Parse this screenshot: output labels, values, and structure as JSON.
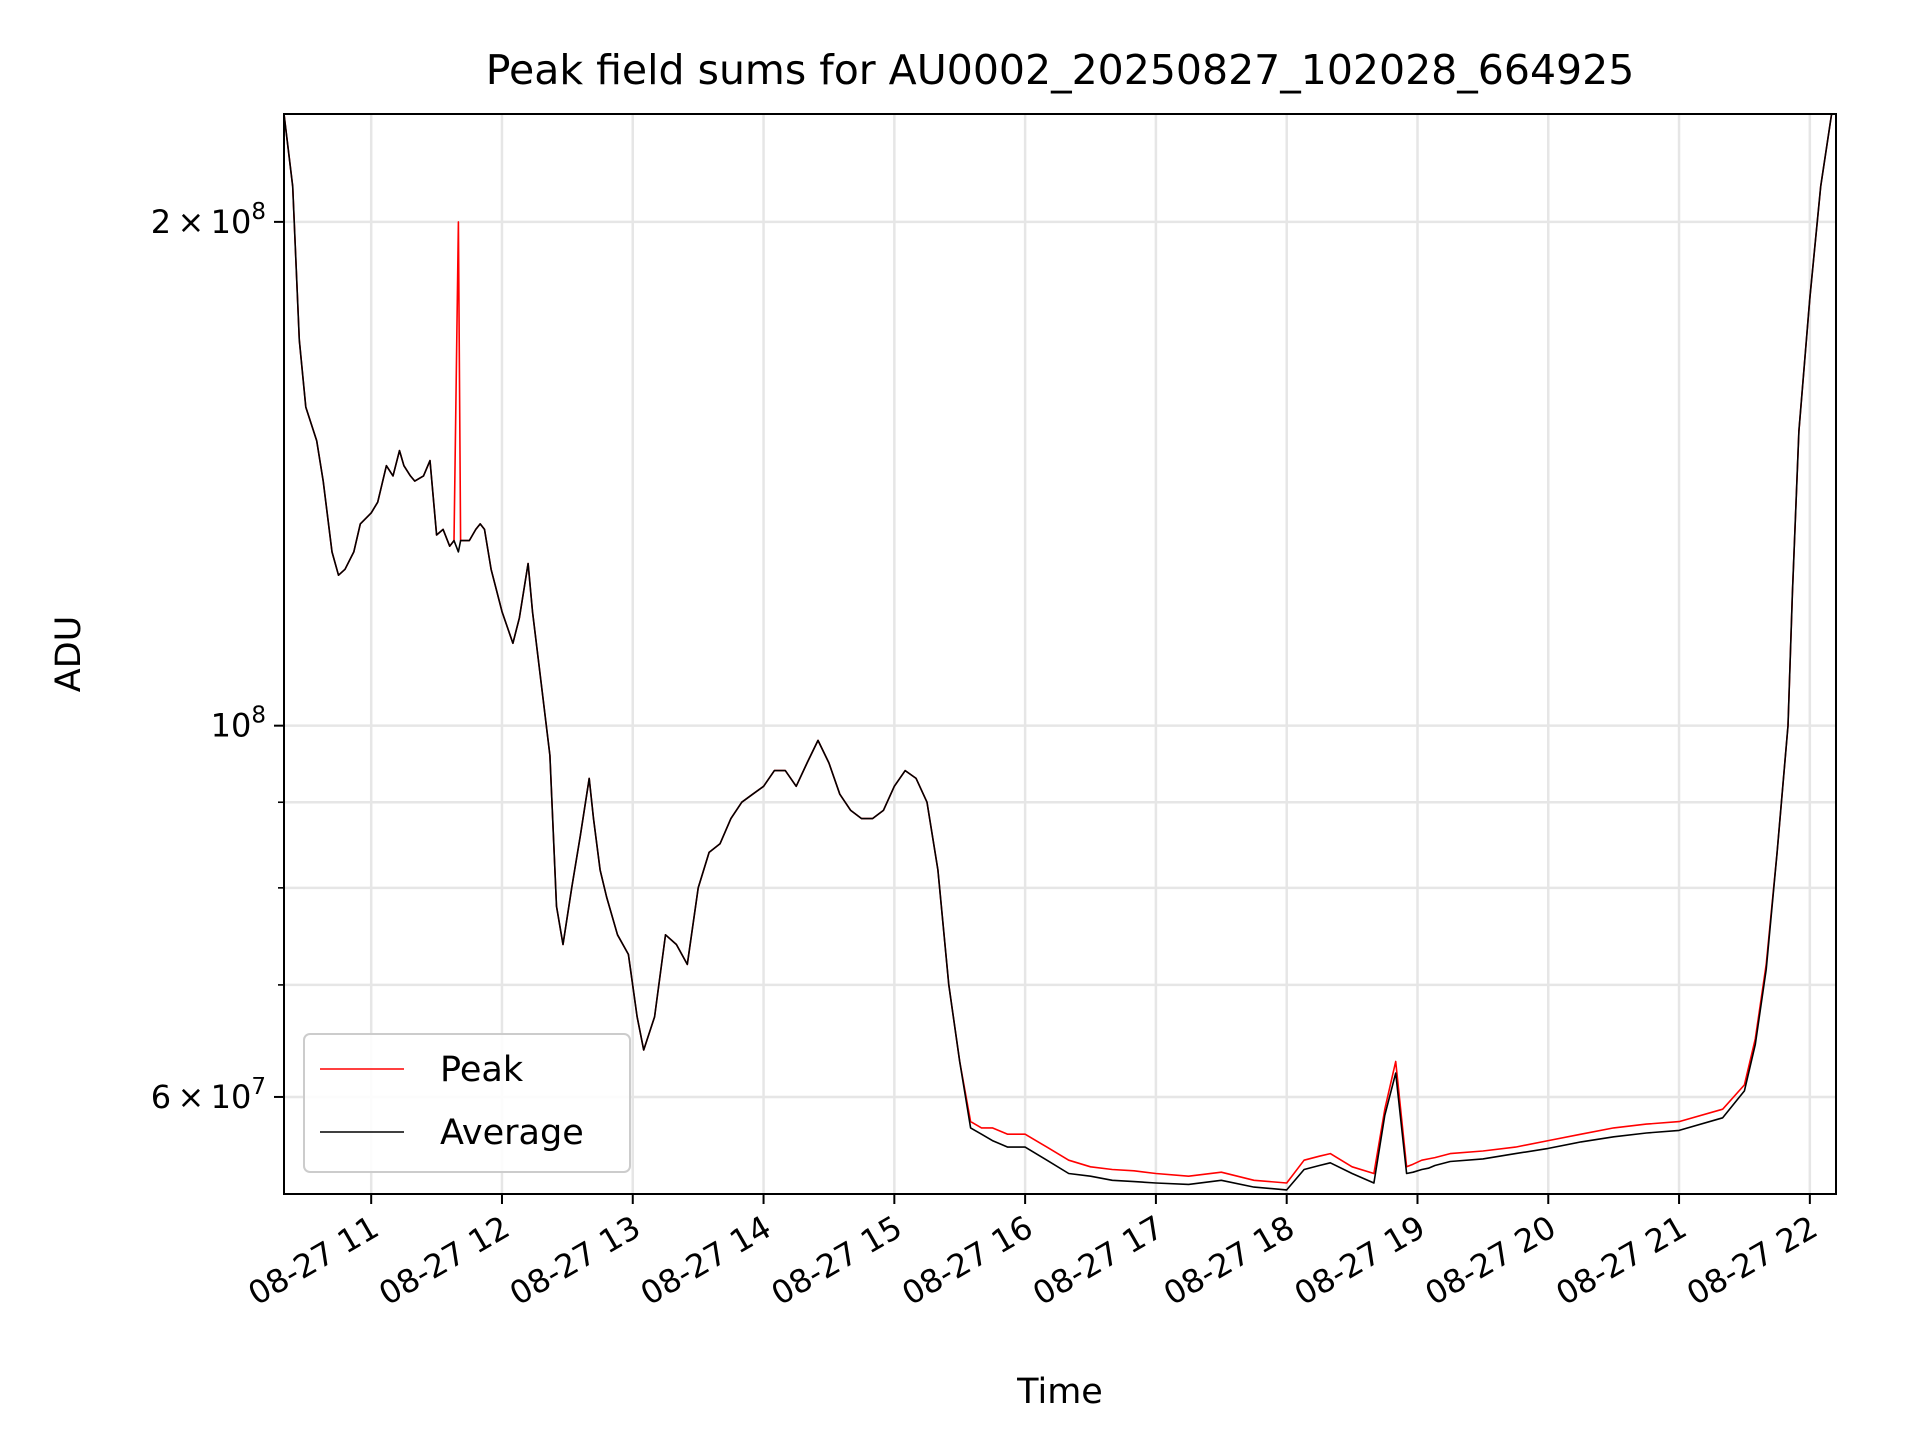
{
  "chart_data": {
    "type": "line",
    "title": "Peak field sums for AU0002_20250827_102028_664925",
    "xlabel": "Time",
    "ylabel": "ADU",
    "yscale": "log",
    "xlim": [
      "08-27 10:20",
      "08-27 22:12"
    ],
    "ylim": [
      52500000,
      232000000
    ],
    "grid": true,
    "legend_position": "lower-left",
    "x_ticks": [
      "08-27 11",
      "08-27 12",
      "08-27 13",
      "08-27 14",
      "08-27 15",
      "08-27 16",
      "08-27 17",
      "08-27 18",
      "08-27 19",
      "08-27 20",
      "08-27 21",
      "08-27 22"
    ],
    "y_ticks": [
      {
        "value": 200000000,
        "mant": "2",
        "exp": "8"
      },
      {
        "value": 100000000,
        "mant": "",
        "exp": "8"
      },
      {
        "value": 60000000,
        "mant": "6",
        "exp": "7"
      }
    ],
    "y_minor_ticks": [
      90000000,
      80000000,
      70000000
    ],
    "x": [
      "10:20",
      "10:24",
      "10:27",
      "10:30",
      "10:35",
      "10:38",
      "10:42",
      "10:45",
      "10:48",
      "10:52",
      "10:55",
      "11:00",
      "11:03",
      "11:07",
      "11:10",
      "11:13",
      "11:15",
      "11:18",
      "11:20",
      "11:24",
      "11:27",
      "11:30",
      "11:33",
      "11:36",
      "11:38",
      "11:40",
      "11:41",
      "11:45",
      "11:48",
      "11:50",
      "11:52",
      "11:55",
      "12:00",
      "12:05",
      "12:08",
      "12:12",
      "12:14",
      "12:18",
      "12:22",
      "12:25",
      "12:28",
      "12:32",
      "12:36",
      "12:40",
      "12:42",
      "12:45",
      "12:48",
      "12:53",
      "12:58",
      "13:02",
      "13:05",
      "13:10",
      "13:15",
      "13:20",
      "13:25",
      "13:30",
      "13:35",
      "13:40",
      "13:45",
      "13:50",
      "13:55",
      "14:00",
      "14:05",
      "14:10",
      "14:15",
      "14:20",
      "14:25",
      "14:30",
      "14:35",
      "14:40",
      "14:45",
      "14:50",
      "14:55",
      "15:00",
      "15:05",
      "15:10",
      "15:15",
      "15:20",
      "15:25",
      "15:30",
      "15:35",
      "15:40",
      "15:45",
      "15:52",
      "16:00",
      "16:10",
      "16:20",
      "16:30",
      "16:40",
      "16:50",
      "17:00",
      "17:15",
      "17:30",
      "17:45",
      "18:00",
      "18:08",
      "18:15",
      "18:20",
      "18:30",
      "18:40",
      "18:45",
      "18:50",
      "18:55",
      "18:58",
      "19:02",
      "19:05",
      "19:08",
      "19:15",
      "19:30",
      "19:45",
      "20:00",
      "20:15",
      "20:30",
      "20:45",
      "21:00",
      "21:20",
      "21:30",
      "21:35",
      "21:40",
      "21:45",
      "21:50",
      "21:52",
      "21:55",
      "22:00",
      "22:05",
      "22:10",
      "22:12"
    ],
    "series": [
      {
        "name": "Peak",
        "color": "#ff0000",
        "values": [
          232000000,
          210000000,
          170000000,
          155000000,
          148000000,
          140000000,
          127000000,
          123000000,
          124000000,
          127000000,
          132000000,
          134000000,
          136000000,
          143000000,
          141000000,
          146000000,
          143000000,
          141000000,
          140000000,
          141000000,
          144000000,
          130000000,
          131000000,
          128000000,
          129000000,
          200000000,
          129000000,
          129000000,
          131000000,
          132000000,
          131000000,
          124000000,
          117000000,
          112000000,
          116000000,
          125000000,
          117000000,
          106000000,
          96000000,
          78000000,
          74000000,
          80000000,
          86000000,
          93000000,
          88000000,
          82000000,
          79000000,
          75000000,
          73000000,
          67000000,
          64000000,
          67000000,
          75000000,
          74000000,
          72000000,
          80000000,
          84000000,
          85000000,
          88000000,
          90000000,
          91000000,
          92000000,
          94000000,
          94000000,
          92000000,
          95000000,
          98000000,
          95000000,
          91000000,
          89000000,
          88000000,
          88000000,
          89000000,
          92000000,
          94000000,
          93000000,
          90000000,
          82000000,
          70000000,
          63000000,
          58000000,
          57500000,
          57500000,
          57000000,
          57000000,
          56000000,
          55000000,
          54500000,
          54300000,
          54200000,
          54000000,
          53800000,
          54100000,
          53500000,
          53300000,
          55000000,
          55300000,
          55500000,
          54500000,
          54000000,
          59000000,
          63000000,
          54500000,
          54700000,
          55000000,
          55100000,
          55200000,
          55500000,
          55700000,
          56000000,
          56500000,
          57000000,
          57500000,
          57800000,
          58000000,
          59000000,
          61000000,
          65000000,
          72000000,
          84000000,
          100000000,
          120000000,
          150000000,
          180000000,
          210000000,
          232000000,
          232000000
        ]
      },
      {
        "name": "Average",
        "color": "#000000",
        "values": [
          232000000,
          210000000,
          170000000,
          155000000,
          148000000,
          140000000,
          127000000,
          123000000,
          124000000,
          127000000,
          132000000,
          134000000,
          136000000,
          143000000,
          141000000,
          146000000,
          143000000,
          141000000,
          140000000,
          141000000,
          144000000,
          130000000,
          131000000,
          128000000,
          129000000,
          127000000,
          129000000,
          129000000,
          131000000,
          132000000,
          131000000,
          124000000,
          117000000,
          112000000,
          116000000,
          125000000,
          117000000,
          106000000,
          96000000,
          78000000,
          74000000,
          80000000,
          86000000,
          93000000,
          88000000,
          82000000,
          79000000,
          75000000,
          73000000,
          67000000,
          64000000,
          67000000,
          75000000,
          74000000,
          72000000,
          80000000,
          84000000,
          85000000,
          88000000,
          90000000,
          91000000,
          92000000,
          94000000,
          94000000,
          92000000,
          95000000,
          98000000,
          95000000,
          91000000,
          89000000,
          88000000,
          88000000,
          89000000,
          92000000,
          94000000,
          93000000,
          90000000,
          82000000,
          70000000,
          63000000,
          57500000,
          57000000,
          56500000,
          56000000,
          56000000,
          55000000,
          54000000,
          53800000,
          53500000,
          53400000,
          53300000,
          53200000,
          53500000,
          53000000,
          52800000,
          54300000,
          54600000,
          54800000,
          54000000,
          53300000,
          58500000,
          62000000,
          54000000,
          54100000,
          54300000,
          54400000,
          54600000,
          54900000,
          55100000,
          55500000,
          55900000,
          56400000,
          56800000,
          57100000,
          57300000,
          58300000,
          60500000,
          64500000,
          71500000,
          84000000,
          100000000,
          120000000,
          150000000,
          180000000,
          210000000,
          232000000,
          232000000
        ]
      }
    ]
  }
}
